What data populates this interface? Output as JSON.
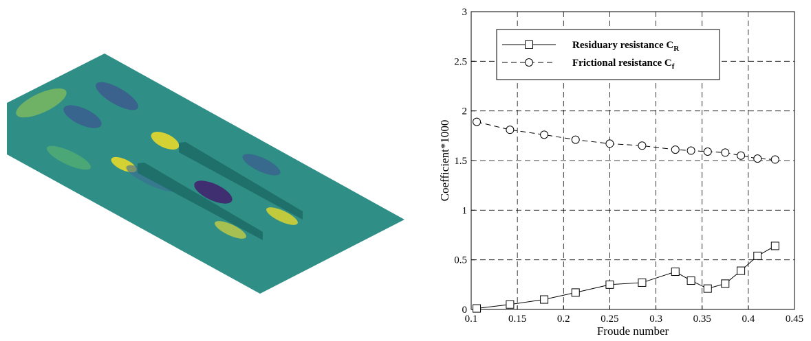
{
  "chart_data": {
    "type": "line",
    "xlabel": "Froude number",
    "ylabel": "Coefficient*1000",
    "x": [
      0.106,
      0.142,
      0.179,
      0.213,
      0.25,
      0.285,
      0.321,
      0.338,
      0.356,
      0.375,
      0.392,
      0.41,
      0.429
    ],
    "series": [
      {
        "name": "Residuary resistance C",
        "name_subscript": "R",
        "color": "#000000",
        "line_style": "solid",
        "marker": "square",
        "values": [
          0.01,
          0.05,
          0.1,
          0.17,
          0.25,
          0.27,
          0.38,
          0.29,
          0.21,
          0.26,
          0.39,
          0.54,
          0.64
        ]
      },
      {
        "name": "Frictional resistance  C",
        "name_subscript": "f",
        "color": "#000000",
        "line_style": "dashed",
        "marker": "circle",
        "values": [
          1.89,
          1.81,
          1.76,
          1.71,
          1.67,
          1.65,
          1.61,
          1.6,
          1.59,
          1.58,
          1.55,
          1.52,
          1.51
        ]
      }
    ],
    "xlim": [
      0.1,
      0.45
    ],
    "xticks": [
      0.1,
      0.15,
      0.2,
      0.25,
      0.3,
      0.35,
      0.4,
      0.45
    ],
    "ylim": [
      0,
      3
    ],
    "yticks": [
      0,
      0.5,
      1,
      1.5,
      2,
      2.5,
      3
    ],
    "grid": true,
    "legend": "upper left"
  }
}
